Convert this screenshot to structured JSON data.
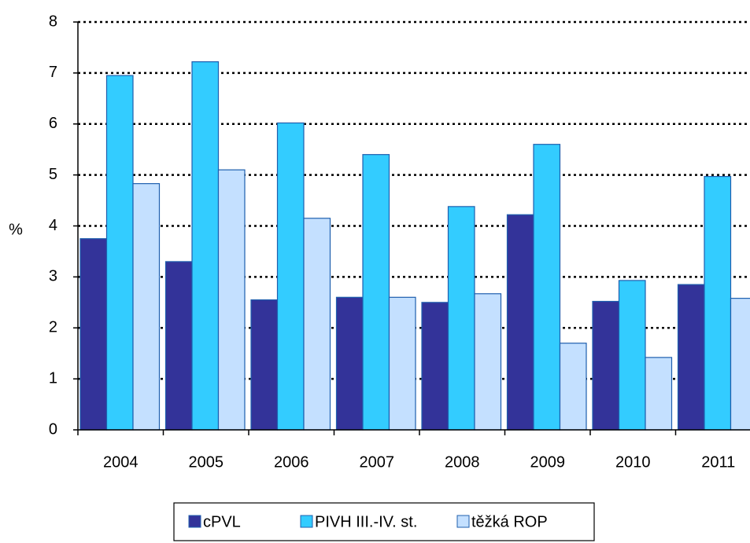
{
  "chart_data": {
    "type": "bar",
    "y_label": "%",
    "categories": [
      "2004",
      "2005",
      "2006",
      "2007",
      "2008",
      "2009",
      "2010",
      "2011"
    ],
    "series": [
      {
        "name": "cPVL",
        "color": "#333399",
        "values": [
          3.75,
          3.3,
          2.55,
          2.6,
          2.5,
          4.22,
          2.52,
          2.85
        ]
      },
      {
        "name": "PIVH III.-IV. st.",
        "color": "#33ccff",
        "values": [
          6.95,
          7.22,
          6.02,
          5.4,
          4.38,
          5.6,
          2.93,
          4.97
        ]
      },
      {
        "name": "těžká ROP",
        "color": "#c4e0ff",
        "values": [
          4.83,
          5.1,
          4.15,
          2.6,
          2.67,
          1.7,
          1.42,
          2.58
        ]
      }
    ],
    "ylim": [
      0,
      8
    ],
    "yticks": [
      0,
      1,
      2,
      3,
      4,
      5,
      6,
      7,
      8
    ],
    "grid": true,
    "legend": "bottom"
  }
}
